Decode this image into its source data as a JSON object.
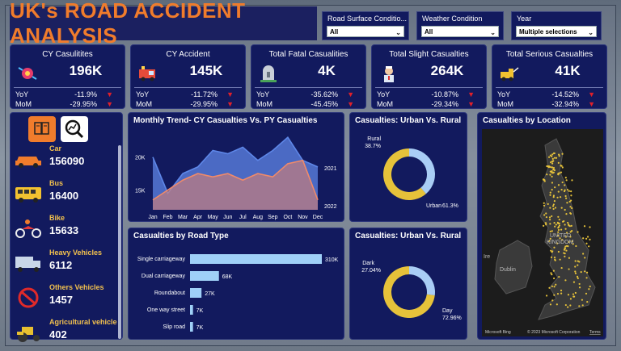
{
  "header": {
    "title": "UK's ROAD ACCIDENT ANALYSIS"
  },
  "filters": [
    {
      "label": "Road Surface Conditio...",
      "value": "All"
    },
    {
      "label": "Weather Condition",
      "value": "All"
    },
    {
      "label": "Year",
      "value": "Multiple selections"
    }
  ],
  "kpis": [
    {
      "title": "CY Casulitites",
      "value": "196K",
      "yoy": "-11.9%",
      "mom": "-29.95%",
      "icon": "crash-icon"
    },
    {
      "title": "CY Accident",
      "value": "145K",
      "yoy": "-11.72%",
      "mom": "-29.95%",
      "icon": "ambulance-icon"
    },
    {
      "title": "Total Fatal Casualities",
      "value": "4K",
      "yoy": "-35.62%",
      "mom": "-45.45%",
      "icon": "grave-icon"
    },
    {
      "title": "Total Slight Casualties",
      "value": "264K",
      "yoy": "-10.87%",
      "mom": "-29.34%",
      "icon": "nurse-icon"
    },
    {
      "title": "Total Serious Casualties",
      "value": "41K",
      "yoy": "-14.52%",
      "mom": "-32.94%",
      "icon": "tow-truck-icon"
    }
  ],
  "kpi_labels": {
    "yoy": "YoY",
    "mom": "MoM"
  },
  "vehicles": [
    {
      "name": "Car",
      "value": "156090",
      "icon": "car-icon"
    },
    {
      "name": "Bus",
      "value": "16400",
      "icon": "bus-icon"
    },
    {
      "name": "Bike",
      "value": "15633",
      "icon": "bike-icon"
    },
    {
      "name": "Heavy Vehicles",
      "value": "6112",
      "icon": "truck-icon"
    },
    {
      "name": "Others Vehicles",
      "value": "1457",
      "icon": "no-entry-icon"
    },
    {
      "name": "Agricultural vehicle",
      "value": "402",
      "icon": "tractor-icon"
    }
  ],
  "colors": {
    "accent": "#f07c2c",
    "panel": "#121a5e",
    "cy": "#4f6fc9",
    "py": "#e8826a",
    "urban": "#e6c23a",
    "rural": "#a9cdf5",
    "bar": "#9fd0f7"
  },
  "trend": {
    "title": "Monthly Trend- CY Casualties Vs. PY Casualties",
    "chart_data": {
      "type": "area",
      "categories": [
        "Jan",
        "Feb",
        "Mar",
        "Apr",
        "May",
        "Jun",
        "Jul",
        "Aug",
        "Sep",
        "Oct",
        "Nov",
        "Dec"
      ],
      "series": [
        {
          "name": "2021",
          "values": [
            20000,
            14500,
            17500,
            18500,
            21000,
            20500,
            21500,
            19500,
            21000,
            23000,
            19500,
            18500
          ]
        },
        {
          "name": "2022",
          "values": [
            13500,
            15000,
            16500,
            17500,
            17000,
            17500,
            16500,
            17500,
            17000,
            19000,
            19500,
            13500
          ]
        }
      ],
      "yticks": [
        "20K",
        "15K"
      ],
      "ylim": [
        12000,
        24000
      ]
    }
  },
  "roadtype": {
    "title": "Casualties by Road Type",
    "chart_data": {
      "type": "bar",
      "categories": [
        "Single carriageway",
        "Dual carriageway",
        "Roundabout",
        "One way street",
        "Slip road"
      ],
      "values": [
        310,
        68,
        27,
        7,
        7
      ],
      "labels": [
        "310K",
        "68K",
        "27K",
        "7K",
        "7K"
      ]
    }
  },
  "urban_rural": {
    "title": "Casualties: Urban Vs. Rural",
    "chart_data": {
      "type": "pie",
      "categories": [
        "Rural",
        "Urban"
      ],
      "values": [
        38.7,
        61.3
      ],
      "labels": [
        "38.7%",
        "61.3%"
      ]
    }
  },
  "light": {
    "title": "Casualties: Urban Vs. Rural",
    "chart_data": {
      "type": "pie",
      "categories": [
        "Dark",
        "Day"
      ],
      "values": [
        27.04,
        72.96
      ],
      "labels": [
        "27.04%",
        "72.96%"
      ]
    }
  },
  "map": {
    "title": "Casualties by Location",
    "labels": [
      "UNITED",
      "KINGDOM",
      "Dublin",
      "Ire"
    ],
    "credit": "© 2023 Microsoft Corporation",
    "terms": "Terms",
    "brand": "Microsoft Bing"
  }
}
